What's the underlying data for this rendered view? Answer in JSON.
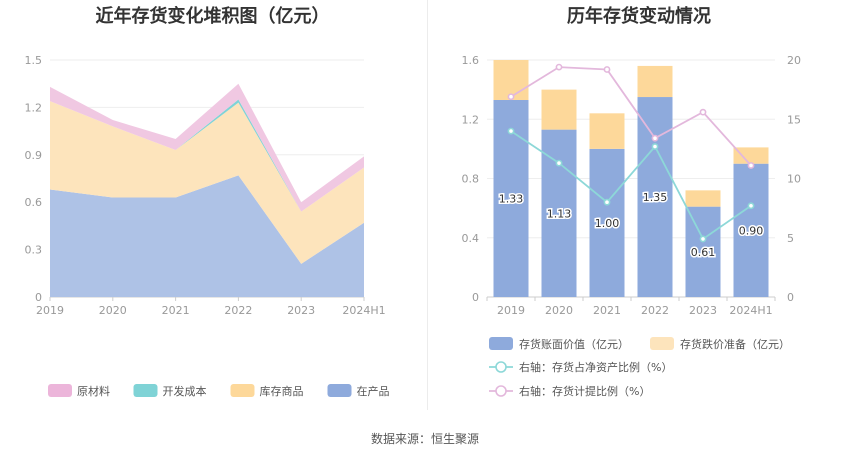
{
  "source": "数据来源：恒生聚源",
  "chart_data": [
    {
      "type": "area",
      "stacked": true,
      "title": "近年存货变化堆积图（亿元）",
      "categories": [
        "2019",
        "2020",
        "2021",
        "2022",
        "2023",
        "2024H1"
      ],
      "ylim": [
        0,
        1.5
      ],
      "yticks": [
        "0",
        "0.3",
        "0.6",
        "0.9",
        "1.2",
        "1.5"
      ],
      "legend_position": "bottom",
      "series": [
        {
          "name": "在产品",
          "color": "#aec2e6",
          "legend_color": "#8eaadc",
          "values": [
            0.68,
            0.63,
            0.63,
            0.77,
            0.21,
            0.47
          ]
        },
        {
          "name": "库存商品",
          "color": "#fde4bc",
          "legend_color": "#fdd89a",
          "values": [
            0.56,
            0.45,
            0.3,
            0.46,
            0.33,
            0.35
          ]
        },
        {
          "name": "开发成本",
          "color": "#7fd3d6",
          "legend_color": "#7fd3d6",
          "values": [
            0.0,
            0.0,
            0.0,
            0.02,
            0.0,
            0.0
          ]
        },
        {
          "name": "原材料",
          "color": "#f0c8e2",
          "legend_color": "#ecb5da",
          "values": [
            0.09,
            0.04,
            0.07,
            0.1,
            0.06,
            0.07
          ]
        }
      ],
      "legend_order": [
        "原材料",
        "开发成本",
        "库存商品",
        "在产品"
      ]
    },
    {
      "type": "bar",
      "stacked": true,
      "title": "历年存货变动情况",
      "categories": [
        "2019",
        "2020",
        "2021",
        "2022",
        "2023",
        "2024H1"
      ],
      "ylim": [
        0,
        1.6
      ],
      "yticks": [
        "0",
        "0.4",
        "0.8",
        "1.2",
        "1.6"
      ],
      "y2lim": [
        0,
        20
      ],
      "y2ticks": [
        "0",
        "5",
        "10",
        "15",
        "20"
      ],
      "bar_series": [
        {
          "name": "存货账面价值（亿元）",
          "color": "#8eaadc",
          "values": [
            1.33,
            1.13,
            1.0,
            1.35,
            0.61,
            0.9
          ],
          "labels": [
            "1.33",
            "1.13",
            "1.00",
            "1.35",
            "0.61",
            "0.90"
          ]
        },
        {
          "name": "存货跌价准备（亿元）",
          "color": "#fdd89a",
          "values": [
            0.27,
            0.27,
            0.24,
            0.21,
            0.11,
            0.11
          ]
        }
      ],
      "line_series": [
        {
          "name": "右轴：存货占净资产比例（%）",
          "color": "#8dd8d8",
          "values": [
            14.0,
            11.3,
            8.0,
            12.7,
            4.9,
            7.7
          ]
        },
        {
          "name": "右轴：存货计提比例（%）",
          "color": "#e3b8dc",
          "values": [
            16.9,
            19.4,
            19.2,
            13.4,
            15.6,
            11.1
          ]
        }
      ]
    }
  ]
}
